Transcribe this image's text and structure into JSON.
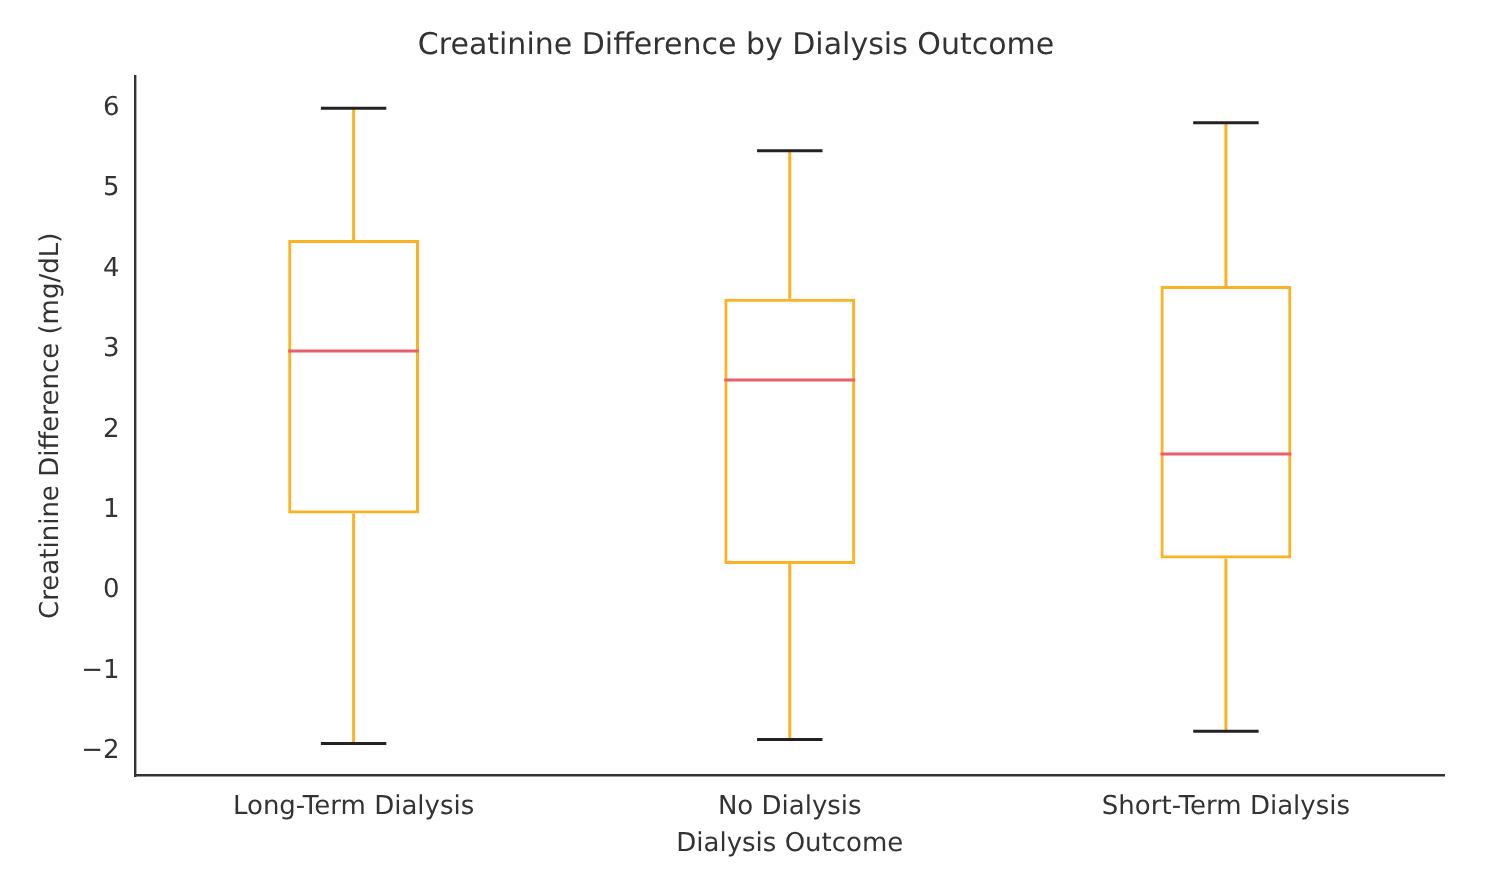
{
  "chart_data": {
    "type": "box",
    "title": "Creatinine Difference by Dialysis Outcome",
    "xlabel": "Dialysis Outcome",
    "ylabel": "Creatinine Difference (mg/dL)",
    "categories": [
      "Long-Term Dialysis",
      "No Dialysis",
      "Short-Term Dialysis"
    ],
    "color": "#fbb325",
    "boxes": [
      {
        "low": -1.9,
        "q1": 0.96,
        "median": 2.98,
        "q3": 4.36,
        "high": 6.0
      },
      {
        "low": -1.85,
        "q1": 0.33,
        "median": 2.62,
        "q3": 3.63,
        "high": 5.47
      },
      {
        "low": -1.75,
        "q1": 0.4,
        "median": 1.7,
        "q3": 3.79,
        "high": 5.82
      }
    ],
    "ylim": [
      -2.3,
      6.4
    ],
    "yticks": [
      {
        "value": -2,
        "label": "−2"
      },
      {
        "value": -1,
        "label": "−1"
      },
      0,
      1,
      2,
      3,
      4,
      5,
      6
    ],
    "grid": false,
    "legend": false
  }
}
